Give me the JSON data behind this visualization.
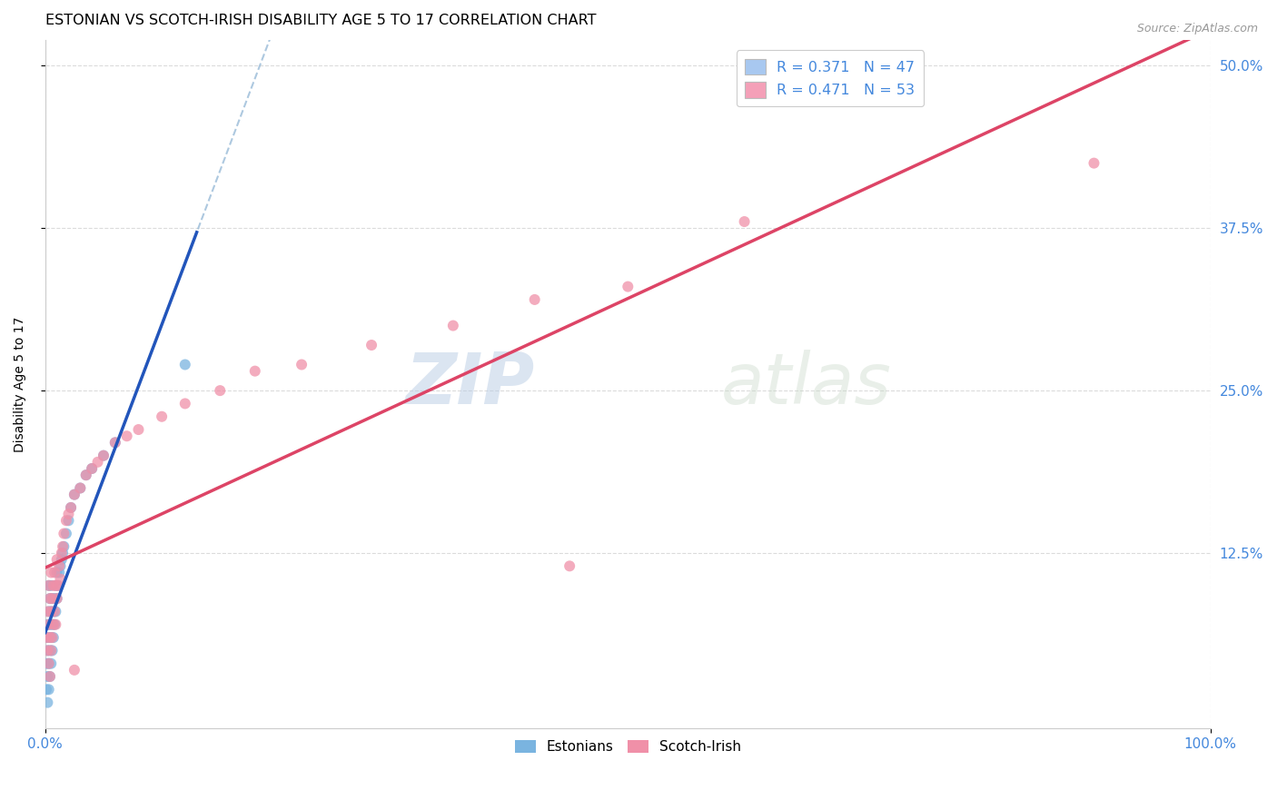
{
  "title": "ESTONIAN VS SCOTCH-IRISH DISABILITY AGE 5 TO 17 CORRELATION CHART",
  "source": "Source: ZipAtlas.com",
  "ylabel": "Disability Age 5 to 17",
  "watermark_zip": "ZIP",
  "watermark_atlas": "atlas",
  "xlim": [
    0.0,
    1.0
  ],
  "ylim": [
    -0.01,
    0.52
  ],
  "legend_items": [
    {
      "label_r": "R = ",
      "r_val": "0.371",
      "label_n": "   N = ",
      "n_val": "47",
      "color": "#a8c8f0"
    },
    {
      "label_r": "R = ",
      "r_val": "0.471",
      "label_n": "   N = ",
      "n_val": "53",
      "color": "#f4a0b8"
    }
  ],
  "estonians_x": [
    0.001,
    0.001,
    0.001,
    0.002,
    0.002,
    0.002,
    0.002,
    0.003,
    0.003,
    0.003,
    0.003,
    0.003,
    0.004,
    0.004,
    0.004,
    0.004,
    0.005,
    0.005,
    0.005,
    0.005,
    0.006,
    0.006,
    0.006,
    0.007,
    0.007,
    0.008,
    0.008,
    0.009,
    0.009,
    0.01,
    0.01,
    0.011,
    0.012,
    0.013,
    0.014,
    0.015,
    0.016,
    0.018,
    0.02,
    0.022,
    0.025,
    0.03,
    0.035,
    0.04,
    0.05,
    0.06,
    0.12
  ],
  "estonians_y": [
    0.02,
    0.04,
    0.06,
    0.01,
    0.03,
    0.05,
    0.07,
    0.02,
    0.04,
    0.06,
    0.08,
    0.1,
    0.03,
    0.05,
    0.07,
    0.09,
    0.04,
    0.06,
    0.08,
    0.1,
    0.05,
    0.07,
    0.09,
    0.06,
    0.08,
    0.07,
    0.09,
    0.08,
    0.1,
    0.09,
    0.11,
    0.1,
    0.11,
    0.115,
    0.12,
    0.125,
    0.13,
    0.14,
    0.15,
    0.16,
    0.17,
    0.175,
    0.185,
    0.19,
    0.2,
    0.21,
    0.27
  ],
  "scotchirish_x": [
    0.001,
    0.002,
    0.002,
    0.003,
    0.003,
    0.003,
    0.004,
    0.004,
    0.004,
    0.005,
    0.005,
    0.005,
    0.006,
    0.006,
    0.007,
    0.007,
    0.008,
    0.008,
    0.009,
    0.009,
    0.01,
    0.01,
    0.011,
    0.012,
    0.013,
    0.014,
    0.015,
    0.016,
    0.018,
    0.02,
    0.022,
    0.025,
    0.03,
    0.035,
    0.04,
    0.045,
    0.05,
    0.06,
    0.07,
    0.08,
    0.1,
    0.12,
    0.15,
    0.18,
    0.22,
    0.28,
    0.35,
    0.42,
    0.5,
    0.6,
    0.025,
    0.45,
    0.9
  ],
  "scotchirish_y": [
    0.06,
    0.05,
    0.08,
    0.04,
    0.07,
    0.1,
    0.03,
    0.06,
    0.09,
    0.05,
    0.08,
    0.11,
    0.06,
    0.09,
    0.07,
    0.1,
    0.08,
    0.11,
    0.07,
    0.1,
    0.09,
    0.12,
    0.1,
    0.115,
    0.105,
    0.125,
    0.13,
    0.14,
    0.15,
    0.155,
    0.16,
    0.17,
    0.175,
    0.185,
    0.19,
    0.195,
    0.2,
    0.21,
    0.215,
    0.22,
    0.23,
    0.24,
    0.25,
    0.265,
    0.27,
    0.285,
    0.3,
    0.32,
    0.33,
    0.38,
    0.035,
    0.115,
    0.425
  ],
  "scatter_marker_size": 75,
  "estonian_color": "#7ab4e0",
  "scotchirish_color": "#f090a8",
  "estonian_line_color": "#2255bb",
  "scotchirish_line_color": "#dd4466",
  "dashed_line_color": "#99bbd8",
  "grid_color": "#d8d8d8",
  "background_color": "#ffffff",
  "title_fontsize": 11.5,
  "tick_label_color": "#4488dd",
  "right_tick_color": "#4488dd"
}
